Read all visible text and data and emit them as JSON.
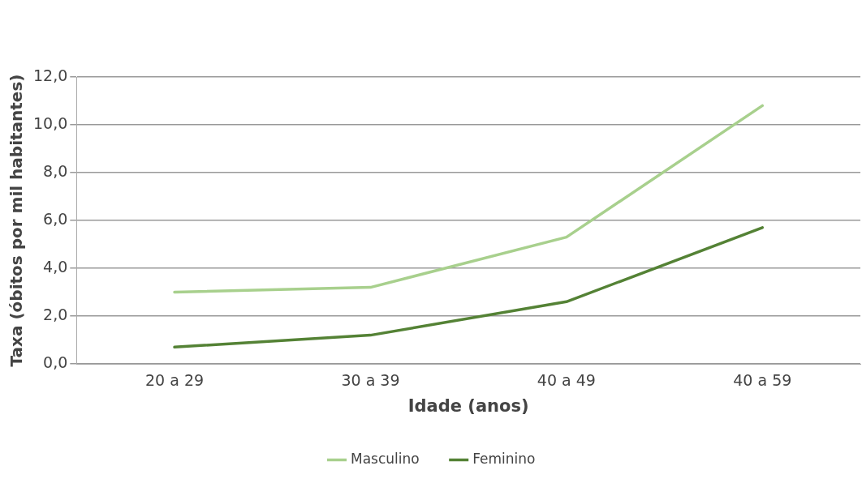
{
  "chart_data": {
    "type": "line",
    "xlabel": "Idade (anos)",
    "ylabel": "Taxa (óbitos por mil habitantes)",
    "categories": [
      "20 a 29",
      "30 a 39",
      "40 a 49",
      "40 a 59"
    ],
    "series": [
      {
        "name": "Masculino",
        "color": "#a8d08d",
        "values": [
          3.0,
          3.2,
          5.3,
          10.8
        ]
      },
      {
        "name": "Feminino",
        "color": "#548235",
        "values": [
          0.7,
          1.2,
          2.6,
          5.7
        ]
      }
    ],
    "ylim": [
      0,
      12
    ],
    "yticks": [
      {
        "value": 0,
        "label": "0,0"
      },
      {
        "value": 2,
        "label": "2,0"
      },
      {
        "value": 4,
        "label": "4,0"
      },
      {
        "value": 6,
        "label": "6,0"
      },
      {
        "value": 8,
        "label": "8,0"
      },
      {
        "value": 10,
        "label": "10,0"
      },
      {
        "value": 12,
        "label": "12,0"
      }
    ],
    "grid": "y",
    "legend": "bottom",
    "marker": "none",
    "line_style": "solid"
  }
}
